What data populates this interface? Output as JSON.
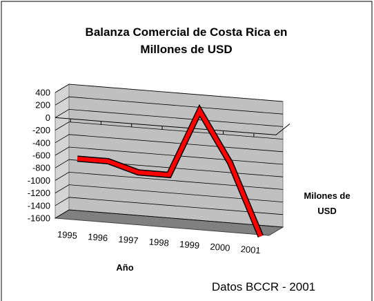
{
  "chart_data": {
    "type": "line3d",
    "title_lines": [
      "Balanza Comercial de Costa Rica en",
      "Millones de USD"
    ],
    "x_label": "Año",
    "y_label_lines": [
      "Milones de",
      "USD"
    ],
    "source": "Datos BCCR - 2001",
    "categories": [
      "1995",
      "1996",
      "1997",
      "1998",
      "1999",
      "2000",
      "2001"
    ],
    "series": [
      {
        "name": "Milones de USD",
        "color": "#ff0000",
        "values": [
          -700,
          -700,
          -840,
          -840,
          220,
          -570,
          -1700
        ]
      }
    ],
    "ylim": [
      -1600,
      400
    ],
    "yticks": [
      400,
      200,
      0,
      -200,
      -400,
      -600,
      -800,
      -1000,
      -1200,
      -1400,
      -1600
    ],
    "grid": true
  }
}
